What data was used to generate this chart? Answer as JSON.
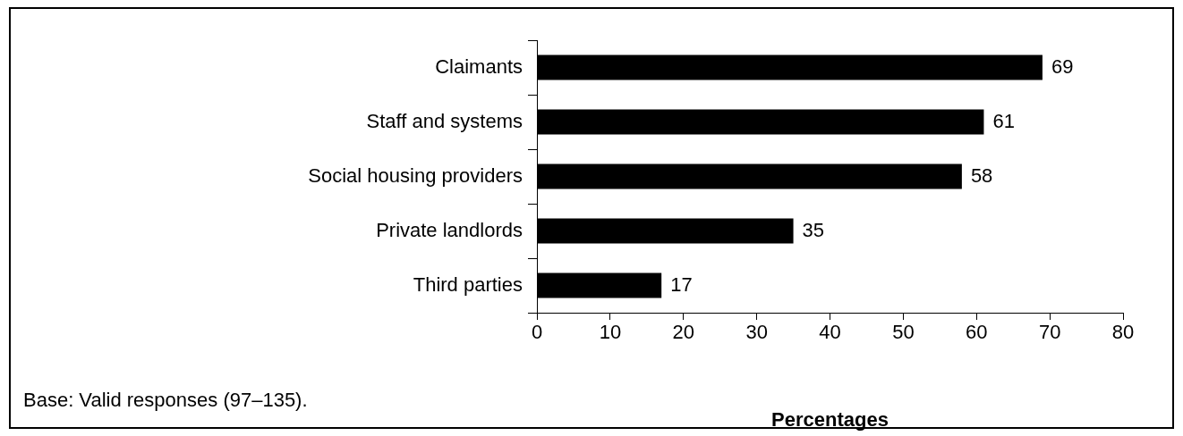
{
  "chart_data": {
    "type": "bar",
    "orientation": "horizontal",
    "categories": [
      "Claimants",
      "Staff and systems",
      "Social housing providers",
      "Private landlords",
      "Third parties"
    ],
    "values": [
      69,
      61,
      58,
      35,
      17
    ],
    "color": "#000000",
    "xlim": [
      0,
      80
    ],
    "xticks": [
      0,
      10,
      20,
      30,
      40,
      50,
      60,
      70,
      80
    ],
    "xlabel": "Percentages",
    "annotations": [
      "Base: Valid responses (97–135)."
    ],
    "data_labels": true,
    "grid": false
  }
}
